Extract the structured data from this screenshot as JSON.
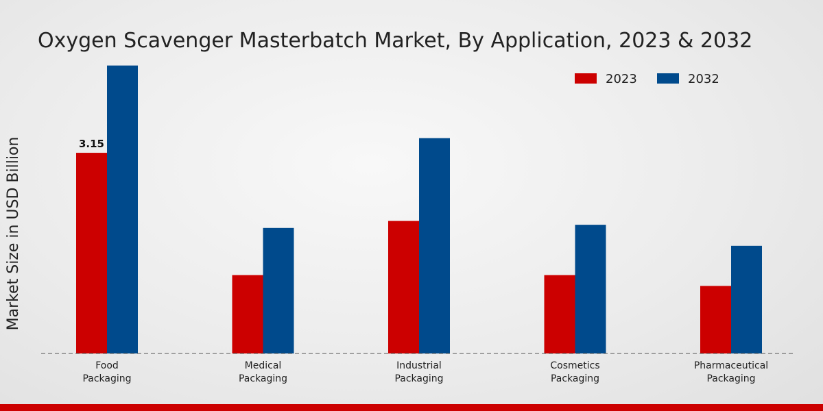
{
  "chart_data": {
    "type": "bar",
    "title": "Oxygen Scavenger Masterbatch Market, By Application, 2023 & 2032",
    "xlabel": "",
    "ylabel": "Market Size in USD Billion",
    "ylim": [
      0,
      5.0
    ],
    "categories": [
      "Food Packaging",
      "Medical Packaging",
      "Industrial Packaging",
      "Cosmetics Packaging",
      "Pharmaceutical Packaging"
    ],
    "category_lines": [
      [
        "Food",
        "Packaging"
      ],
      [
        "Medical",
        "Packaging"
      ],
      [
        "Industrial",
        "Packaging"
      ],
      [
        "Cosmetics",
        "Packaging"
      ],
      [
        "Pharmaceutical",
        "Packaging"
      ]
    ],
    "series": [
      {
        "name": "2023",
        "color": "#cc0000",
        "values": [
          3.15,
          1.23,
          2.08,
          1.23,
          1.06
        ]
      },
      {
        "name": "2032",
        "color": "#004a8c",
        "values": [
          4.52,
          1.97,
          3.38,
          2.02,
          1.69
        ]
      }
    ],
    "data_labels": [
      {
        "series": 0,
        "index": 0,
        "text": "3.15"
      }
    ],
    "legend_position": "top-right",
    "grid": false
  },
  "theme": {
    "bottom_bar_color": "#cc0000",
    "text_color": "#222222",
    "axis_color": "#555555"
  }
}
